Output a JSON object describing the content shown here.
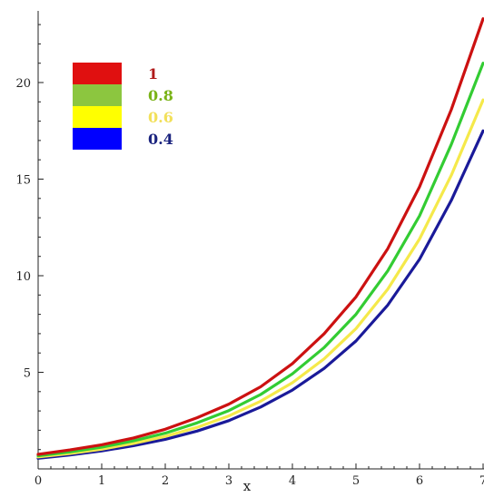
{
  "chart_data": {
    "type": "line",
    "xlabel": "x",
    "ylabel": "",
    "xlim": [
      0,
      7
    ],
    "ylim": [
      0,
      24
    ],
    "x_ticks": [
      0,
      1,
      2,
      3,
      4,
      5,
      6,
      7
    ],
    "x_tick_labels": [
      "0",
      "1",
      "2",
      "3",
      "4",
      "5",
      "6",
      "7"
    ],
    "y_ticks": [
      5,
      10,
      15,
      20
    ],
    "y_tick_labels": [
      "5",
      "10",
      "15",
      "20"
    ],
    "grid": false,
    "legend_position": "top-left",
    "series": [
      {
        "name": "1",
        "color": "#cc1111",
        "label_color": "#b01a1a",
        "swatch_color": "#e01010",
        "x": [
          0,
          0.5,
          1,
          1.5,
          2,
          2.5,
          3,
          3.5,
          4,
          4.5,
          5,
          5.5,
          6,
          6.5,
          7
        ],
        "y": [
          0.75,
          0.98,
          1.25,
          1.6,
          2.05,
          2.65,
          3.35,
          4.25,
          5.45,
          7.0,
          8.9,
          11.4,
          14.6,
          18.6,
          23.3
        ]
      },
      {
        "name": "0.8",
        "color": "#33cc33",
        "label_color": "#7ab317",
        "swatch_color": "#8cc63f",
        "x": [
          0,
          0.5,
          1,
          1.5,
          2,
          2.5,
          3,
          3.5,
          4,
          4.5,
          5,
          5.5,
          6,
          6.5,
          7
        ],
        "y": [
          0.68,
          0.88,
          1.12,
          1.45,
          1.85,
          2.38,
          3.02,
          3.85,
          4.92,
          6.28,
          8.0,
          10.25,
          13.1,
          16.8,
          21.0
        ]
      },
      {
        "name": "0.6",
        "color": "#f5e94a",
        "label_color": "#f2e05a",
        "swatch_color": "#ffff00",
        "x": [
          0,
          0.5,
          1,
          1.5,
          2,
          2.5,
          3,
          3.5,
          4,
          4.5,
          5,
          5.5,
          6,
          6.5,
          7
        ],
        "y": [
          0.62,
          0.8,
          1.02,
          1.32,
          1.68,
          2.15,
          2.74,
          3.5,
          4.46,
          5.7,
          7.26,
          9.3,
          11.9,
          15.2,
          19.1
        ]
      },
      {
        "name": "0.4",
        "color": "#1a1a99",
        "label_color": "#1a237e",
        "swatch_color": "#0000ff",
        "x": [
          0,
          0.5,
          1,
          1.5,
          2,
          2.5,
          3,
          3.5,
          4,
          4.5,
          5,
          5.5,
          6,
          6.5,
          7
        ],
        "y": [
          0.55,
          0.72,
          0.93,
          1.2,
          1.53,
          1.96,
          2.5,
          3.2,
          4.08,
          5.2,
          6.62,
          8.48,
          10.85,
          13.9,
          17.5
        ]
      }
    ]
  }
}
